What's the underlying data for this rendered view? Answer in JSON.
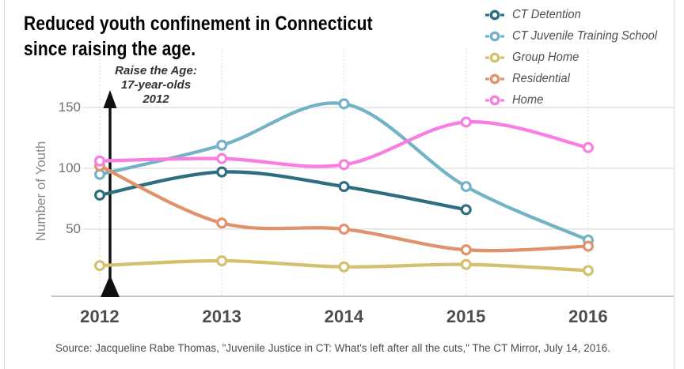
{
  "page": {
    "source": "Source: Jacqueline Rabe Thomas, \"Juvenile Justice in CT: What's left after all the cuts,\" The CT Mirror, July 14, 2016."
  },
  "chart_data": {
    "type": "line",
    "title": "Reduced youth confinement in Connecticut\nsince raising the age.",
    "xlabel": "",
    "ylabel": "Number of Youth",
    "x": [
      2012,
      2013,
      2014,
      2015,
      2016
    ],
    "yticks": [
      50,
      100,
      150
    ],
    "ylim": [
      -5,
      200
    ],
    "grid": {
      "horizontal_solid": true,
      "vertical_dotted": true
    },
    "legend_position": "top-right",
    "annotation": {
      "text": "Raise the Age:\n17-year-olds\n2012",
      "arrow": "vertical-black-arrow-at-2012",
      "arrow_color": "#111111"
    },
    "series": [
      {
        "name": "CT Detention",
        "color": "#2d6f80",
        "values": [
          78,
          97,
          85,
          66,
          null
        ]
      },
      {
        "name": "CT Juvenile Training School",
        "color": "#74b2c8",
        "values": [
          95,
          119,
          153,
          85,
          41
        ]
      },
      {
        "name": "Group Home",
        "color": "#d5c06f",
        "values": [
          20,
          24,
          19,
          21,
          16
        ]
      },
      {
        "name": "Residential",
        "color": "#e0926a",
        "values": [
          102,
          55,
          50,
          33,
          36
        ]
      },
      {
        "name": "Home",
        "color": "#fa7de2",
        "values": [
          106,
          108,
          103,
          138,
          117
        ]
      }
    ],
    "colors": {
      "grid_line": "#dcdcdc",
      "axis_line": "#b3b3b3",
      "tick_label": "#707070",
      "year_label": "#4d4d4d",
      "marker_fill": "#ffffff"
    }
  }
}
